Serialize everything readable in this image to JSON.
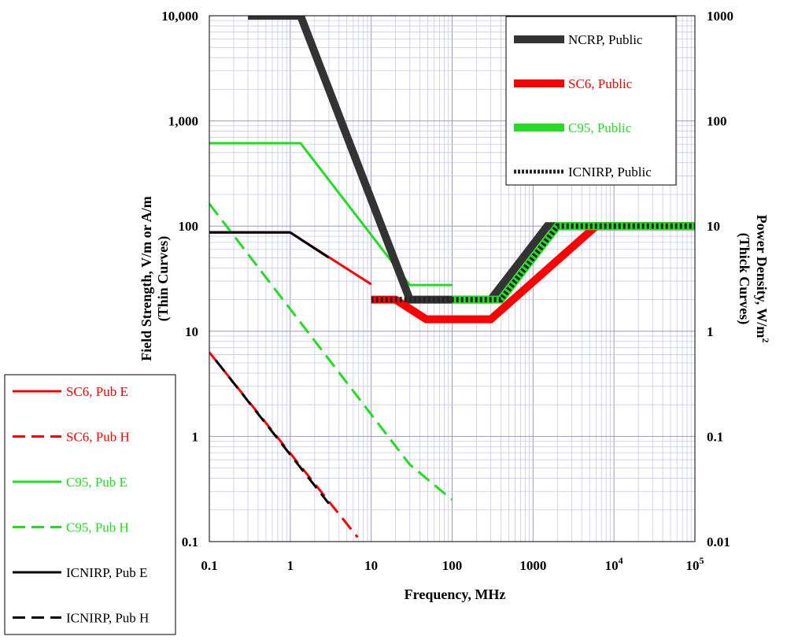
{
  "chart_data": {
    "type": "line",
    "xlabel": "Frequency, MHz",
    "ylabel_left": [
      "Field Strength, V/m or A/m",
      "(Thin Curves)"
    ],
    "ylabel_right": [
      "Power Density, W/m",
      "2",
      "(Thick Curves)"
    ],
    "x_scale": "log",
    "y_scale": "log",
    "xlim": [
      0.1,
      100000
    ],
    "ylim_left": [
      0.1,
      10000
    ],
    "ylim_right": [
      0.01,
      1000
    ],
    "grid": true,
    "x_ticks": [
      {
        "value": 0.1,
        "label": "0.1"
      },
      {
        "value": 1,
        "label": "1"
      },
      {
        "value": 10,
        "label": "10"
      },
      {
        "value": 100,
        "label": "100"
      },
      {
        "value": 1000,
        "label": "1000"
      },
      {
        "value": 10000,
        "label": "10",
        "sup": "4"
      },
      {
        "value": 100000,
        "label": "10",
        "sup": "5"
      }
    ],
    "y_ticks_left": [
      {
        "value": 0.1,
        "label": "0.1"
      },
      {
        "value": 1,
        "label": "1"
      },
      {
        "value": 10,
        "label": "10"
      },
      {
        "value": 100,
        "label": "100"
      },
      {
        "value": 1000,
        "label": "1,000"
      },
      {
        "value": 10000,
        "label": "10,000"
      }
    ],
    "y_ticks_right": [
      {
        "value": 0.01,
        "label": "0.01"
      },
      {
        "value": 0.1,
        "label": "0.1"
      },
      {
        "value": 1,
        "label": "1"
      },
      {
        "value": 10,
        "label": "10"
      },
      {
        "value": 100,
        "label": "100"
      },
      {
        "value": 1000,
        "label": "1000"
      }
    ],
    "legend_thick_placement": "top-right",
    "legend_thin_placement": "bottom-left outside",
    "series_thick": [
      {
        "name": "NCRP, Public",
        "color": "#333333",
        "dash": "solid",
        "zorder": 1,
        "points": [
          [
            0.3,
            1000
          ],
          [
            1.34,
            1000
          ],
          [
            30,
            2
          ],
          [
            300,
            2
          ],
          [
            1500,
            10
          ],
          [
            100000,
            10
          ]
        ]
      },
      {
        "name": "SC6, Public",
        "color": "#ff0000",
        "dash": "solid",
        "zorder": 2,
        "points": [
          [
            10,
            2
          ],
          [
            20,
            2
          ],
          [
            48,
            1.3
          ],
          [
            300,
            1.3
          ],
          [
            6000,
            10
          ],
          [
            100000,
            10
          ]
        ]
      },
      {
        "name": "C95, Public",
        "color": "#22dd22",
        "dash": "solid",
        "zorder": 3,
        "points": [
          [
            100,
            2
          ],
          [
            400,
            2
          ],
          [
            2000,
            10
          ],
          [
            100000,
            10
          ]
        ]
      },
      {
        "name": "ICNIRP, Public",
        "color": "#222222",
        "dash": "dotted",
        "zorder": 4,
        "points": [
          [
            10,
            2
          ],
          [
            20,
            2
          ],
          [
            100,
            2
          ],
          [
            400,
            2
          ],
          [
            2000,
            10
          ],
          [
            100000,
            10
          ]
        ]
      }
    ],
    "series_thin": [
      {
        "name": "SC6, Pub E",
        "color": "#ff0000",
        "dash": "solid",
        "points": [
          [
            0.1,
            87
          ],
          [
            1,
            87
          ],
          [
            10,
            28
          ]
        ]
      },
      {
        "name": "SC6, Pub H",
        "color": "#ff0000",
        "dash": "dashed",
        "points": [
          [
            0.1,
            6.3
          ],
          [
            6.8,
            0.11
          ]
        ]
      },
      {
        "name": "C95, Pub E",
        "color": "#22dd22",
        "dash": "solid",
        "points": [
          [
            0.1,
            614
          ],
          [
            1.34,
            614
          ],
          [
            30,
            27.5
          ],
          [
            100,
            27.5
          ]
        ]
      },
      {
        "name": "C95, Pub H",
        "color": "#22dd22",
        "dash": "dashed",
        "points": [
          [
            0.1,
            163
          ],
          [
            30,
            0.54
          ],
          [
            100,
            0.25
          ]
        ]
      },
      {
        "name": "ICNIRP, Pub E",
        "color": "#000000",
        "dash": "solid",
        "points": [
          [
            0.1,
            87
          ],
          [
            1,
            87
          ],
          [
            3,
            50
          ]
        ]
      },
      {
        "name": "ICNIRP, Pub H",
        "color": "#000000",
        "dash": "dashed",
        "points": [
          [
            0.12,
            5.3
          ],
          [
            3,
            0.23
          ]
        ]
      }
    ]
  }
}
